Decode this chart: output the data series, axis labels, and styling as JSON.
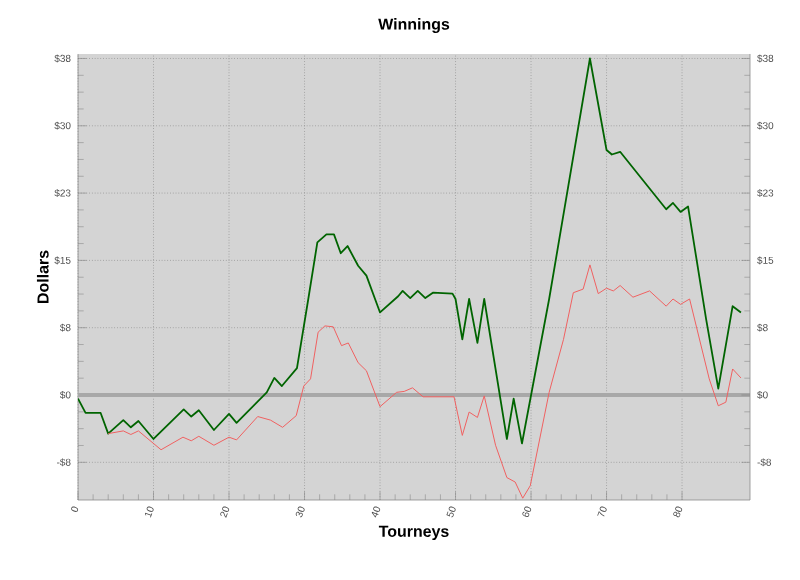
{
  "chart_data": {
    "type": "line",
    "title": "Winnings",
    "xlabel": "Tourneys",
    "ylabel": "Dollars",
    "grid": true,
    "xlim": [
      0,
      89
    ],
    "xticks": [
      0,
      10,
      20,
      30,
      40,
      50,
      60,
      70,
      80
    ],
    "ylim": [
      -11.7,
      38
    ],
    "yticks": [
      {
        "value": -7.5,
        "label": "-$8"
      },
      {
        "value": 0,
        "label": "$0"
      },
      {
        "value": 7.5,
        "label": "$8"
      },
      {
        "value": 15,
        "label": "$15"
      },
      {
        "value": 22.5,
        "label": "$23"
      },
      {
        "value": 30,
        "label": "$30"
      },
      {
        "value": 37.5,
        "label": "$38"
      }
    ],
    "y2lim": [
      -11.7,
      38
    ],
    "y2ticks": [
      {
        "value": -7.5,
        "label": "-$8"
      },
      {
        "value": 0,
        "label": "$0"
      },
      {
        "value": 7.5,
        "label": "$8"
      },
      {
        "value": 15,
        "label": "$15"
      },
      {
        "value": 22.5,
        "label": "$23"
      },
      {
        "value": 30,
        "label": "$30"
      },
      {
        "value": 37.5,
        "label": "$38"
      }
    ],
    "ref_lines": [
      {
        "axis": "y",
        "value": 0,
        "color": "#a8a8a8"
      }
    ],
    "series": [
      {
        "color": "#006400",
        "x": [
          0,
          1,
          3,
          4,
          6,
          7,
          8,
          10,
          14,
          15,
          16,
          18,
          20,
          21,
          25,
          26,
          27,
          29,
          30.5,
          31.7,
          32.9,
          33.9,
          34.8,
          35.7,
          37.1,
          38.2,
          40,
          42.4,
          43,
          44,
          45,
          46,
          47,
          49.6,
          50,
          50.9,
          51.8,
          52.9,
          53.8,
          56.8,
          57.7,
          58.8,
          62.4,
          67.8,
          70,
          70.7,
          71.8,
          77.9,
          78.8,
          79.8,
          80.8,
          83.2,
          84.8,
          86.7,
          87.8
        ],
        "values": [
          -0.4,
          -2,
          -2,
          -4.3,
          -2.8,
          -3.6,
          -2.9,
          -4.9,
          -1.6,
          -2.4,
          -1.7,
          -3.9,
          -2.1,
          -3.1,
          0.3,
          1.9,
          1,
          3,
          10.7,
          17,
          17.9,
          17.9,
          15.8,
          16.6,
          14.4,
          13.3,
          9.2,
          11,
          11.6,
          10.8,
          11.6,
          10.8,
          11.4,
          11.3,
          10.7,
          6.2,
          10.7,
          5.8,
          10.7,
          -4.9,
          -0.4,
          -5.4,
          10.7,
          37.5,
          27.3,
          26.8,
          27.1,
          20.7,
          21.4,
          20.4,
          21,
          8.4,
          0.7,
          9.9,
          9.2
        ]
      },
      {
        "color": "#f06060",
        "x": [
          4,
          6,
          7,
          8,
          11,
          13.9,
          15,
          16,
          18,
          20,
          21,
          23.8,
          25.5,
          27.1,
          28.9,
          29.9,
          30.8,
          31.8,
          32.7,
          33.8,
          34.9,
          35.8,
          37.1,
          38.2,
          40,
          42.2,
          43.2,
          44.3,
          45.7,
          49.8,
          50.9,
          51.8,
          52.9,
          53.8,
          55.3,
          56.8,
          57.9,
          58.9,
          59.9,
          62.4,
          64.3,
          65.6,
          66.9,
          67.8,
          68.9,
          70,
          70.9,
          71.8,
          73.5,
          75.7,
          77.9,
          78.8,
          79.8,
          81,
          83.6,
          84.8,
          85.8,
          86.7,
          87.8
        ],
        "values": [
          -4.3,
          -4,
          -4.4,
          -4,
          -6.1,
          -4.7,
          -5.1,
          -4.6,
          -5.6,
          -4.7,
          -5,
          -2.4,
          -2.8,
          -3.6,
          -2.3,
          1,
          1.8,
          7,
          7.7,
          7.6,
          5.5,
          5.8,
          3.6,
          2.7,
          -1.3,
          0.3,
          0.4,
          0.8,
          -0.2,
          -0.2,
          -4.5,
          -1.9,
          -2.5,
          -0.1,
          -5.6,
          -9.2,
          -9.7,
          -11.5,
          -10.1,
          0.3,
          6.2,
          11.4,
          11.8,
          14.5,
          11.3,
          11.9,
          11.6,
          12.2,
          10.9,
          11.6,
          9.9,
          10.7,
          10.1,
          10.7,
          1.8,
          -1.2,
          -0.8,
          2.9,
          1.9
        ]
      }
    ]
  }
}
